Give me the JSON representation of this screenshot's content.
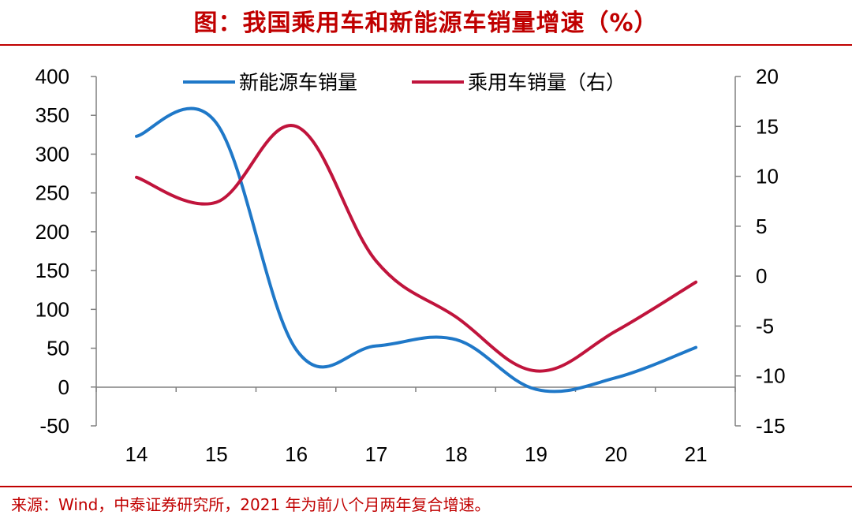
{
  "header": {
    "title": "图：我国乘用车和新能源车销量增速（%）"
  },
  "footer": {
    "source": "来源：Wind，中泰证券研究所，2021 年为前八个月两年复合增速。"
  },
  "chart_data": {
    "type": "line",
    "title": "图：我国乘用车和新能源车销量增速（%）",
    "categories": [
      "14",
      "15",
      "16",
      "17",
      "18",
      "19",
      "20",
      "21"
    ],
    "y_left": {
      "min": -50,
      "max": 400,
      "ticks": [
        "-50",
        "0",
        "50",
        "100",
        "150",
        "200",
        "250",
        "300",
        "350",
        "400"
      ]
    },
    "y_right": {
      "min": -15,
      "max": 20,
      "ticks": [
        "-15",
        "-10",
        "-5",
        "0",
        "5",
        "10",
        "15",
        "20"
      ]
    },
    "series": [
      {
        "name": "新能源车销量",
        "axis": "left",
        "color": "#1f78c8",
        "values": [
          323,
          340,
          48,
          53,
          61,
          -3,
          12,
          51
        ]
      },
      {
        "name": "乘用车销量（右）",
        "axis": "right",
        "color": "#c0143c",
        "values": [
          9.9,
          7.4,
          15.0,
          1.5,
          -4.1,
          -9.5,
          -5.5,
          -0.6
        ]
      }
    ],
    "legend": "top-center"
  }
}
